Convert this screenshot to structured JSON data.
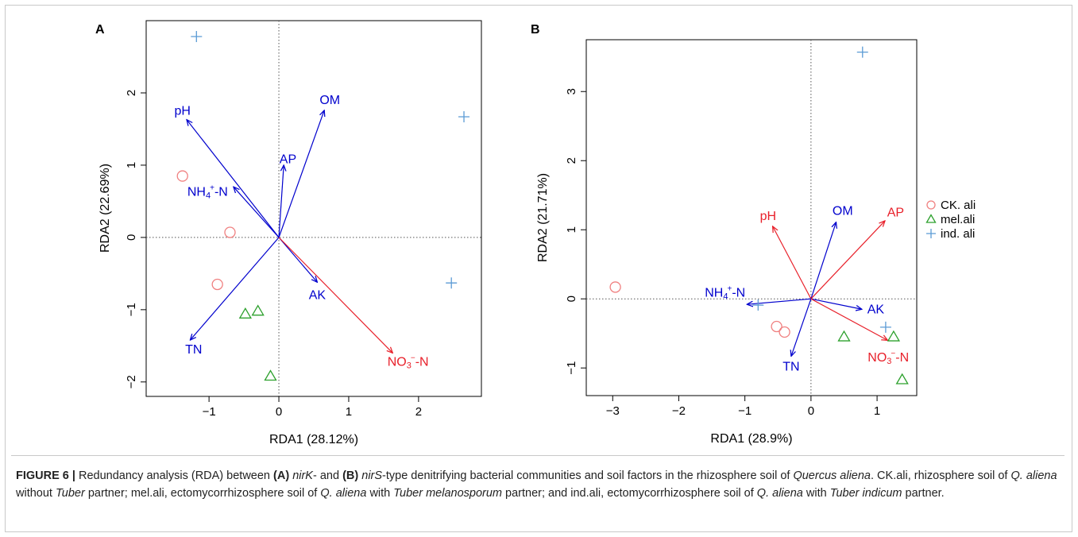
{
  "chart_data": [
    {
      "panel_label": "A",
      "type": "scatter",
      "xlabel": "RDA1 (28.12%)",
      "ylabel": "RDA2 (22.69%)",
      "xlim": [
        -1.9,
        2.9
      ],
      "ylim": [
        -2.2,
        3.0
      ],
      "xticks": [
        -1,
        0,
        1,
        2
      ],
      "yticks": [
        -2,
        -1,
        0,
        1,
        2
      ],
      "reference_lines": {
        "x": 0,
        "y": 0,
        "style": "dotted"
      },
      "series": [
        {
          "name": "CK. ali",
          "marker": "circle",
          "color": "#f08080",
          "points": [
            [
              -1.38,
              0.85
            ],
            [
              -0.7,
              0.07
            ],
            [
              -0.88,
              -0.65
            ]
          ]
        },
        {
          "name": "mel.ali",
          "marker": "triangle",
          "color": "#2ca02c",
          "points": [
            [
              -0.48,
              -1.06
            ],
            [
              -0.3,
              -1.02
            ],
            [
              -0.12,
              -1.92
            ]
          ]
        },
        {
          "name": "ind. ali",
          "marker": "plus",
          "color": "#5b9bd5",
          "points": [
            [
              -1.18,
              2.78
            ],
            [
              2.65,
              1.67
            ],
            [
              2.47,
              -0.63
            ]
          ]
        }
      ],
      "arrows": [
        {
          "label": "pH",
          "x": -1.32,
          "y": 1.63,
          "color": "#0000cd"
        },
        {
          "label": "OM",
          "x": 0.65,
          "y": 1.76,
          "color": "#0000cd"
        },
        {
          "label": "AP",
          "x": 0.07,
          "y": 1.0,
          "color": "#0000cd"
        },
        {
          "label": "NH4+-N",
          "x": -0.65,
          "y": 0.7,
          "color": "#0000cd"
        },
        {
          "label": "AK",
          "x": 0.55,
          "y": -0.62,
          "color": "#0000cd"
        },
        {
          "label": "TN",
          "x": -1.27,
          "y": -1.42,
          "color": "#0000cd"
        },
        {
          "label": "NO3--N",
          "x": 1.63,
          "y": -1.6,
          "color": "#e8202a"
        }
      ]
    },
    {
      "panel_label": "B",
      "type": "scatter",
      "xlabel": "RDA1 (28.9%)",
      "ylabel": "RDA2 (21.71%)",
      "xlim": [
        -3.4,
        1.6
      ],
      "ylim": [
        -1.4,
        3.75
      ],
      "xticks": [
        -3,
        -2,
        -1,
        0,
        1
      ],
      "yticks": [
        -1,
        0,
        1,
        2,
        3
      ],
      "reference_lines": {
        "x": 0,
        "y": 0,
        "style": "dotted"
      },
      "series": [
        {
          "name": "CK. ali",
          "marker": "circle",
          "color": "#f08080",
          "points": [
            [
              -2.96,
              0.17
            ],
            [
              -0.52,
              -0.4
            ],
            [
              -0.4,
              -0.48
            ]
          ]
        },
        {
          "name": "mel.ali",
          "marker": "triangle",
          "color": "#2ca02c",
          "points": [
            [
              0.5,
              -0.55
            ],
            [
              1.25,
              -0.55
            ],
            [
              1.38,
              -1.17
            ]
          ]
        },
        {
          "name": "ind. ali",
          "marker": "plus",
          "color": "#5b9bd5",
          "points": [
            [
              0.78,
              3.57
            ],
            [
              1.13,
              -0.41
            ],
            [
              -0.8,
              -0.09
            ]
          ]
        }
      ],
      "arrows": [
        {
          "label": "pH",
          "x": -0.58,
          "y": 1.05,
          "color": "#e8202a"
        },
        {
          "label": "OM",
          "x": 0.38,
          "y": 1.11,
          "color": "#0000cd"
        },
        {
          "label": "AP",
          "x": 1.12,
          "y": 1.13,
          "color": "#e8202a"
        },
        {
          "label": "NH4+-N",
          "x": -0.97,
          "y": -0.08,
          "color": "#0000cd"
        },
        {
          "label": "AK",
          "x": 0.77,
          "y": -0.15,
          "color": "#0000cd"
        },
        {
          "label": "TN",
          "x": -0.3,
          "y": -0.83,
          "color": "#0000cd"
        },
        {
          "label": "NO3--N",
          "x": 1.16,
          "y": -0.6,
          "color": "#e8202a"
        }
      ]
    }
  ],
  "legend": {
    "position": "right",
    "items": [
      {
        "label": "CK. ali",
        "marker": "circle",
        "color": "#f08080"
      },
      {
        "label": "mel.ali",
        "marker": "triangle",
        "color": "#2ca02c"
      },
      {
        "label": "ind. ali",
        "marker": "plus",
        "color": "#5b9bd5"
      }
    ]
  },
  "caption": {
    "figure_label": "FIGURE 6 |",
    "t1": " Redundancy analysis (RDA) between ",
    "a": "(A)",
    "t2": " ",
    "gene_a": "nirK",
    "t3": "- and ",
    "b": "(B)",
    "t4": " ",
    "gene_b": "nirS",
    "t5": "-type denitrifying bacterial communities and soil factors in the rhizosphere soil of ",
    "species": "Quercus aliena",
    "t6": ". CK.ali, rhizosphere soil of ",
    "q1": "Q. aliena",
    "t7": " without ",
    "tuber1": "Tuber",
    "t8": " partner; mel.ali, ectomycorrhizosphere soil of ",
    "q2": "Q. aliena",
    "t9": " with ",
    "tuber2": "Tuber melanosporum",
    "t10": " partner; and ind.ali, ectomycorrhizosphere soil of ",
    "q3": "Q. aliena",
    "t11": " with ",
    "tuber3": "Tuber indicum",
    "t12": " partner."
  }
}
